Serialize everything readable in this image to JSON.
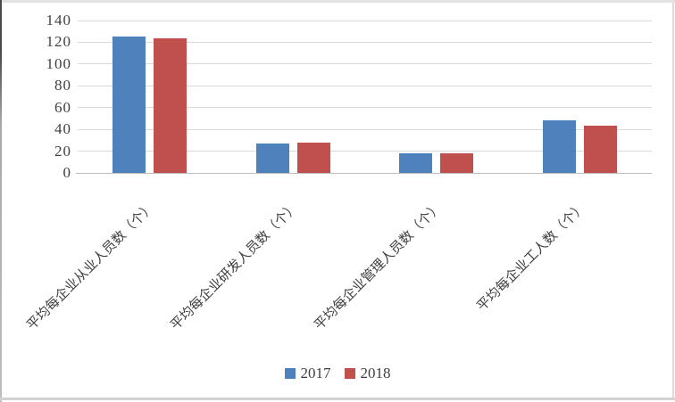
{
  "chart_data": {
    "type": "bar",
    "title": "",
    "xlabel": "",
    "ylabel": "",
    "categories": [
      "平均每企业从业人员数（个）",
      "平均每企业研发人员数（个）",
      "平均每企业管理人员数（个）",
      "平均每企业工人数（个）"
    ],
    "series": [
      {
        "name": "2017",
        "color": "#4F81BD",
        "values": [
          125,
          27,
          18,
          48
        ]
      },
      {
        "name": "2018",
        "color": "#C0504D",
        "values": [
          124,
          28,
          18,
          43
        ]
      }
    ],
    "ylim": [
      0,
      140
    ],
    "yticks": [
      0,
      20,
      40,
      60,
      80,
      100,
      120,
      140
    ],
    "grid": true,
    "legend_position": "bottom"
  },
  "colors": {
    "gridline": "#D9D9D9",
    "axis_line": "#BFBFBF",
    "text": "#3F3F3F",
    "background": "#FFFFFF"
  }
}
